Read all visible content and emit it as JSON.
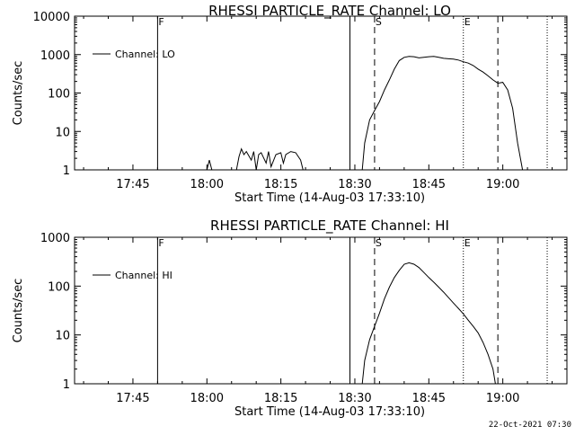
{
  "footer": {
    "timestamp": "22-Oct-2021 07:30"
  },
  "chart_data": [
    {
      "type": "line",
      "title": "RHESSI PARTICLE_RATE Channel: LO",
      "xlabel": "Start Time (14-Aug-03 17:33:10)",
      "ylabel": "Counts/sec",
      "yscale": "log",
      "ylim": [
        1,
        10000
      ],
      "xlim": [
        "17:33:10",
        "19:13"
      ],
      "xticks": [
        "17:45",
        "18:00",
        "18:15",
        "18:30",
        "18:45",
        "19:00"
      ],
      "yticks": [
        "1",
        "10",
        "100",
        "1000",
        "10000"
      ],
      "legend": {
        "placement": "top-left",
        "entries": [
          "Channel: LO"
        ]
      },
      "markers": [
        {
          "label": "F",
          "time": "17:50",
          "style": "solid"
        },
        {
          "label": "",
          "time": "18:29",
          "style": "solid"
        },
        {
          "label": "S",
          "time": "18:34",
          "style": "dashed"
        },
        {
          "label": "E",
          "time": "18:52",
          "style": "dotted"
        },
        {
          "label": "",
          "time": "18:59",
          "style": "dashed"
        },
        {
          "label": "",
          "time": "19:09",
          "style": "dotted"
        }
      ],
      "series": [
        {
          "name": "Channel: LO",
          "x": [
            "18:00",
            "18:00.5",
            "18:01",
            "18:06",
            "18:06.5",
            "18:07",
            "18:07.5",
            "18:08",
            "18:09",
            "18:09.5",
            "18:10",
            "18:10.5",
            "18:11",
            "18:12",
            "18:12.5",
            "18:13",
            "18:14",
            "18:15",
            "18:15.5",
            "18:16",
            "18:17",
            "18:18",
            "18:19",
            "18:19.5",
            "18:31.5",
            "18:32",
            "18:33",
            "18:34",
            "18:35",
            "18:36",
            "18:37",
            "18:38",
            "18:39",
            "18:40",
            "18:41",
            "18:42",
            "18:43",
            "18:44",
            "18:45",
            "18:46",
            "18:47",
            "18:48",
            "18:49",
            "18:50",
            "18:51",
            "18:52",
            "18:53",
            "18:54",
            "18:55",
            "18:56",
            "18:57",
            "18:58",
            "18:59",
            "19:00",
            "19:01",
            "19:02",
            "19:03",
            "19:04"
          ],
          "y": [
            1,
            1.8,
            1,
            1,
            2.2,
            3.5,
            2.5,
            3.0,
            1.8,
            3.0,
            1,
            2.5,
            2.8,
            1.5,
            3.0,
            1.2,
            2.5,
            2.8,
            1.5,
            2.5,
            3.0,
            2.8,
            1.8,
            1,
            1,
            5,
            20,
            35,
            60,
            120,
            220,
            420,
            700,
            850,
            900,
            880,
            820,
            850,
            880,
            900,
            850,
            800,
            780,
            760,
            720,
            650,
            600,
            520,
            420,
            350,
            280,
            220,
            180,
            190,
            120,
            40,
            5,
            1
          ]
        }
      ]
    },
    {
      "type": "line",
      "title": "RHESSI PARTICLE_RATE Channel: HI",
      "xlabel": "Start Time (14-Aug-03 17:33:10)",
      "ylabel": "Counts/sec",
      "yscale": "log",
      "ylim": [
        1,
        1000
      ],
      "xlim": [
        "17:33:10",
        "19:13"
      ],
      "xticks": [
        "17:45",
        "18:00",
        "18:15",
        "18:30",
        "18:45",
        "19:00"
      ],
      "yticks": [
        "1",
        "10",
        "100",
        "1000"
      ],
      "legend": {
        "placement": "top-left",
        "entries": [
          "Channel: HI"
        ]
      },
      "markers": [
        {
          "label": "F",
          "time": "17:50",
          "style": "solid"
        },
        {
          "label": "",
          "time": "18:29",
          "style": "solid"
        },
        {
          "label": "S",
          "time": "18:34",
          "style": "dashed"
        },
        {
          "label": "E",
          "time": "18:52",
          "style": "dotted"
        },
        {
          "label": "",
          "time": "18:59",
          "style": "dashed"
        },
        {
          "label": "",
          "time": "19:09",
          "style": "dotted"
        }
      ],
      "series": [
        {
          "name": "Channel: HI",
          "x": [
            "18:31.5",
            "18:32",
            "18:33",
            "18:34",
            "18:35",
            "18:36",
            "18:37",
            "18:38",
            "18:39",
            "18:40",
            "18:41",
            "18:42",
            "18:43",
            "18:44",
            "18:45",
            "18:46",
            "18:47",
            "18:48",
            "18:49",
            "18:50",
            "18:51",
            "18:52",
            "18:53",
            "18:54",
            "18:55",
            "18:56",
            "18:57",
            "18:58",
            "18:58.5"
          ],
          "y": [
            1,
            3,
            8,
            15,
            28,
            55,
            95,
            150,
            210,
            280,
            300,
            280,
            240,
            190,
            150,
            120,
            95,
            75,
            58,
            45,
            35,
            27,
            20,
            15,
            11,
            7,
            4,
            2,
            1
          ]
        }
      ]
    }
  ]
}
